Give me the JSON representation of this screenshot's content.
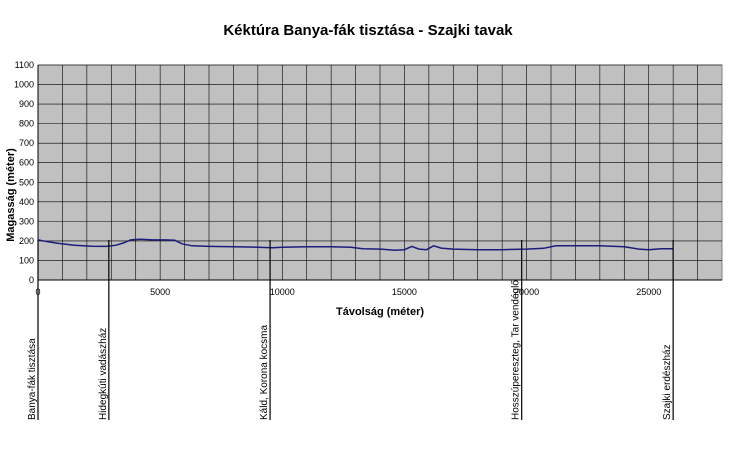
{
  "chart_data": {
    "type": "line",
    "title": "Kéktúra Banya-fák tisztása - Szajki tavak",
    "xlabel": "Távolság (méter)",
    "ylabel": "Magasság (méter)",
    "xlim": [
      0,
      28000
    ],
    "ylim": [
      0,
      1100
    ],
    "x_ticks": [
      0,
      5000,
      10000,
      15000,
      20000,
      25000
    ],
    "y_ticks": [
      0,
      100,
      200,
      300,
      400,
      500,
      600,
      700,
      800,
      900,
      1000,
      1100
    ],
    "grid": true,
    "plot_background": "#c0c0c0",
    "line_color": "#1c1c7c",
    "series": [
      {
        "x": [
          0,
          300,
          800,
          1500,
          2200,
          2800,
          3200,
          3500,
          3800,
          4200,
          4700,
          5200,
          5600,
          5900,
          6300,
          7000,
          8000,
          9000,
          9600,
          10000,
          11000,
          12000,
          12800,
          13300,
          14000,
          14600,
          15000,
          15300,
          15600,
          15900,
          16200,
          16500,
          17000,
          18000,
          19000,
          20000,
          20700,
          21200,
          22000,
          23000,
          24000,
          24600,
          25000,
          25500,
          26000
        ],
        "y": [
          205,
          198,
          188,
          178,
          173,
          172,
          178,
          190,
          205,
          208,
          205,
          205,
          203,
          185,
          175,
          172,
          170,
          168,
          165,
          168,
          170,
          170,
          168,
          160,
          158,
          152,
          155,
          172,
          158,
          155,
          175,
          163,
          158,
          155,
          155,
          158,
          162,
          175,
          175,
          175,
          170,
          158,
          155,
          160,
          160
        ]
      }
    ]
  },
  "waypoints": [
    {
      "label": "Banya-fák tisztása",
      "distance": 0
    },
    {
      "label": "Hidegkúti vadászház",
      "distance": 2900
    },
    {
      "label": "Káld, Korona kocsma",
      "distance": 9500
    },
    {
      "label": "Hosszúpereszteg, Tar vendéglő",
      "distance": 19800
    },
    {
      "label": "Szajki erdészház",
      "distance": 26000
    }
  ]
}
